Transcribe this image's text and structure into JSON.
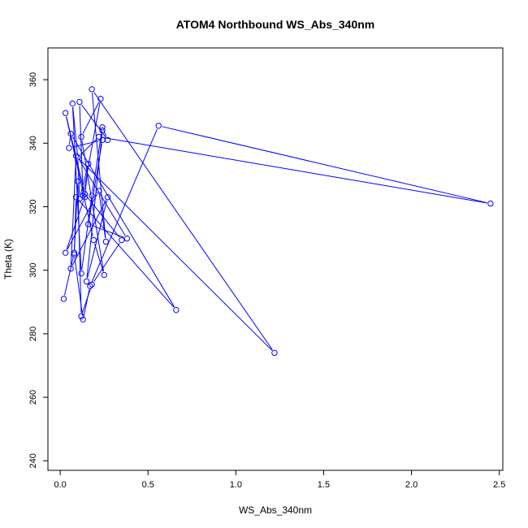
{
  "chart_data": {
    "type": "line",
    "title": "ATOM4 Northbound WS_Abs_340nm",
    "xlabel": "WS_Abs_340nm",
    "ylabel": "Theta (K)",
    "xlim": [
      -0.07,
      2.52
    ],
    "ylim": [
      237,
      370
    ],
    "xticks": [
      "0.0",
      "0.5",
      "1.0",
      "1.5",
      "2.0",
      "2.5"
    ],
    "yticks": [
      "240",
      "260",
      "280",
      "300",
      "320",
      "340",
      "360"
    ],
    "grid": false,
    "legend": "none",
    "marker": "open-circle",
    "series": [
      {
        "color": "#0000ff",
        "points": [
          [
            0.02,
            291.0
          ],
          [
            0.08,
            305.5
          ],
          [
            0.1,
            328.0
          ],
          [
            0.12,
            285.5
          ],
          [
            0.18,
            295.5
          ],
          [
            0.35,
            309.5
          ],
          [
            0.14,
            324.0
          ],
          [
            0.03,
            349.5
          ],
          [
            0.19,
            309.5
          ],
          [
            0.25,
            298.5
          ],
          [
            0.12,
            342.0
          ],
          [
            0.23,
            354.0
          ],
          [
            0.13,
            323.5
          ],
          [
            0.11,
            353.0
          ],
          [
            0.27,
            341.0
          ],
          [
            0.24,
            345.0
          ],
          [
            0.18,
            323.5
          ],
          [
            0.12,
            299.0
          ],
          [
            0.07,
            352.5
          ],
          [
            0.1,
            335.5
          ],
          [
            0.38,
            310.0
          ],
          [
            0.16,
            314.5
          ],
          [
            0.24,
            341.0
          ],
          [
            0.05,
            338.5
          ],
          [
            0.06,
            343.0
          ],
          [
            0.66,
            287.5
          ],
          [
            0.09,
            323.0
          ],
          [
            0.08,
            305.0
          ],
          [
            0.13,
            284.5
          ],
          [
            0.17,
            295.0
          ],
          [
            0.56,
            345.5
          ],
          [
            2.45,
            321.0
          ],
          [
            0.22,
            342.0
          ],
          [
            0.1,
            335.5
          ],
          [
            0.11,
            322.5
          ],
          [
            0.16,
            333.5
          ],
          [
            0.14,
            323.0
          ],
          [
            0.03,
            305.5
          ],
          [
            0.22,
            325.0
          ],
          [
            0.26,
            309.0
          ],
          [
            0.18,
            357.0
          ],
          [
            1.22,
            274.0
          ],
          [
            0.09,
            336.0
          ],
          [
            0.06,
            300.5
          ],
          [
            0.27,
            323.0
          ],
          [
            0.15,
            296.5
          ],
          [
            0.24,
            344.0
          ]
        ]
      }
    ]
  }
}
